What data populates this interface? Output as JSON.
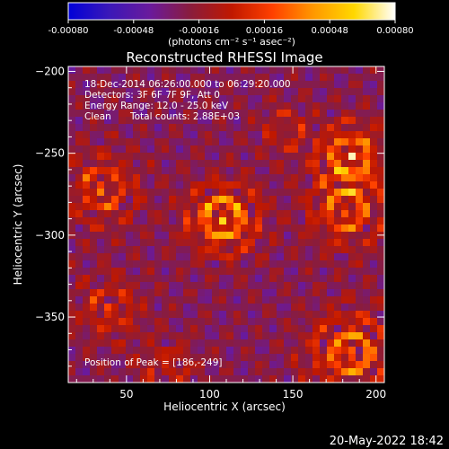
{
  "chart_data": {
    "type": "heatmap",
    "title": "Reconstructed RHESSI Image",
    "xlabel": "Heliocentric X (arcsec)",
    "ylabel": "Heliocentric Y (arcsec)",
    "xlim": [
      15,
      205
    ],
    "ylim": [
      -390,
      -197
    ],
    "x_ticks": [
      50,
      100,
      150,
      200
    ],
    "y_ticks": [
      -200,
      -250,
      -300,
      -350
    ],
    "colorbar": {
      "label": "(photons cm⁻² s⁻¹ asec⁻²)",
      "range": [
        -0.0008,
        0.0008
      ],
      "ticks": [
        "-0.00080",
        "-0.00048",
        "-0.00016",
        "0.00016",
        "0.00048",
        "0.00080"
      ],
      "colors": [
        "#0000d8",
        "#3b18b8",
        "#6a1a9c",
        "#8a1c3c",
        "#c01800",
        "#ff4000",
        "#ff9800",
        "#ffd800",
        "#ffffff"
      ]
    },
    "sources": [
      {
        "x": 108,
        "y": -290,
        "peak": 0.0008,
        "radius": 15
      },
      {
        "x": 185,
        "y": -252,
        "peak": 0.00072,
        "radius": 14
      },
      {
        "x": 182,
        "y": -285,
        "peak": 0.00056,
        "radius": 16
      },
      {
        "x": 185,
        "y": -372,
        "peak": 0.00064,
        "radius": 18
      },
      {
        "x": 35,
        "y": -272,
        "peak": 0.00048,
        "radius": 16
      },
      {
        "x": 40,
        "y": -345,
        "peak": 0.0004,
        "radius": 14
      },
      {
        "x": 75,
        "y": -382,
        "peak": 0.00036,
        "radius": 12
      },
      {
        "x": 145,
        "y": -236,
        "peak": 0.00032,
        "radius": 11
      }
    ],
    "annotations": {
      "time_range": "18-Dec-2014 06:26:00.000 to 06:29:20.000",
      "detectors": "Detectors: 3F 6F 7F 9F, Att 0",
      "energy": "Energy Range: 12.0 - 25.0 keV",
      "method": "Clean",
      "counts": "Total counts: 2.88E+03",
      "peak": "Position of Peak = [186,-249]"
    }
  },
  "footer": {
    "timestamp": "20-May-2022 18:42"
  }
}
